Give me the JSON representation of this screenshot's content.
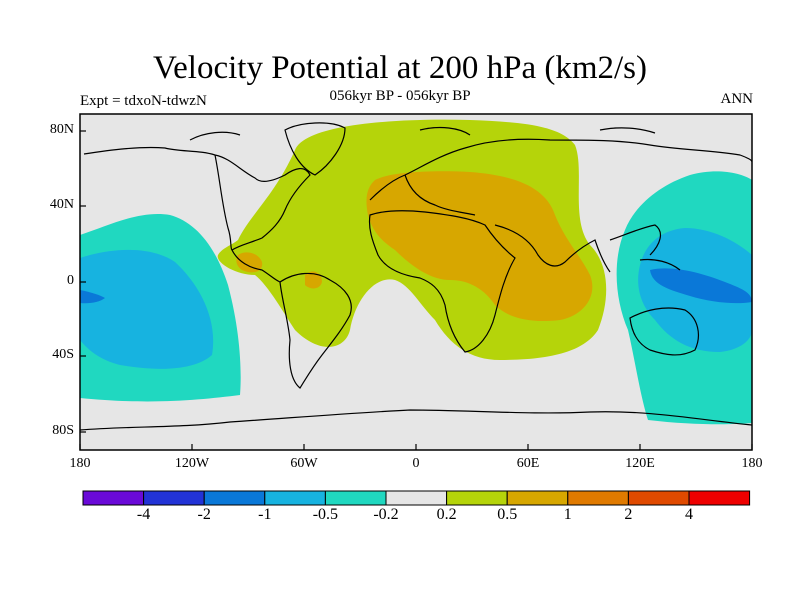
{
  "title": "Velocity Potential at 200 hPa (km2/s)",
  "subtitle": "056kyr BP - 056kyr BP",
  "experiment": "Expt = tdxoN-tdwzN",
  "season": "ANN",
  "lat_labels": [
    "80N",
    "40N",
    "0",
    "40S",
    "80S"
  ],
  "lon_labels": [
    "180",
    "120W",
    "60W",
    "0",
    "60E",
    "120E",
    "180"
  ],
  "colorbar": {
    "colors": [
      "#6a0ad8",
      "#2233d6",
      "#0a78d8",
      "#17b3e0",
      "#20d8c0",
      "#e6e6e6",
      "#b5d40a",
      "#d7a700",
      "#e07a00",
      "#e04a00",
      "#ee0000"
    ],
    "labels": [
      "-4",
      "-2",
      "-1",
      "-0.5",
      "-0.2",
      "0.2",
      "0.5",
      "1",
      "2",
      "4"
    ]
  },
  "legend_colors": {
    "ocean": "#e6e6e6",
    "coast": "#000000"
  }
}
